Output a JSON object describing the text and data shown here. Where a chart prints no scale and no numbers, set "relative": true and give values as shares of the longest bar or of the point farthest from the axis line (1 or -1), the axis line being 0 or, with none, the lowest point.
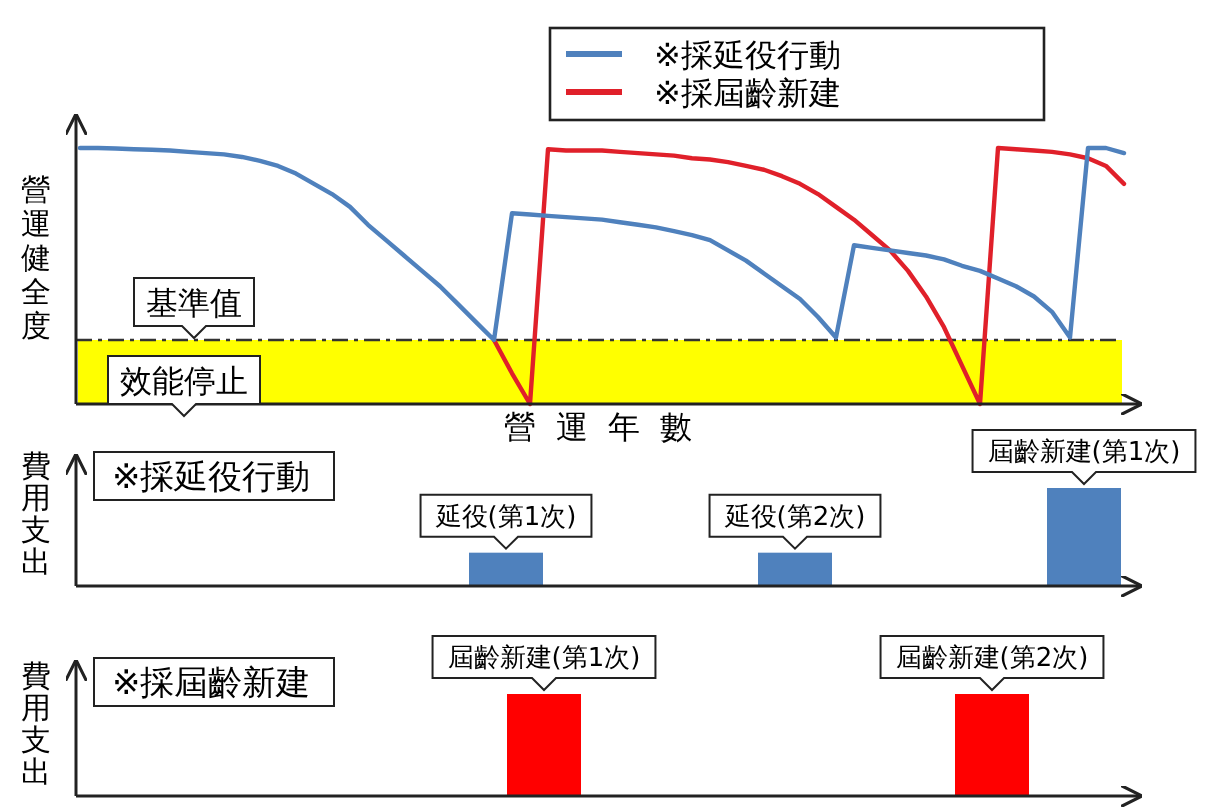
{
  "chart_data": [
    {
      "type": "line",
      "relative": true,
      "xlabel": "營運年數",
      "ylabel": "營運健全度",
      "legend": "top",
      "marker": "none",
      "line_style": "solid",
      "categories": [
        null,
        null,
        null,
        null,
        null,
        null,
        null,
        null,
        null,
        null,
        null,
        null,
        null,
        null,
        null,
        null,
        null,
        null,
        null,
        null,
        null,
        null,
        null,
        null,
        null,
        null,
        null,
        null,
        null,
        null,
        null,
        null,
        null,
        null,
        null,
        null,
        null,
        null,
        null,
        null,
        null,
        null,
        null,
        null,
        null,
        null,
        null,
        null,
        null,
        null,
        null,
        null,
        null,
        null,
        null,
        null,
        null,
        null,
        null
      ],
      "series": [
        {
          "name": "※採屆齡新建",
          "color": "#e0202a",
          "values": [
            null,
            null,
            null,
            null,
            null,
            null,
            null,
            null,
            null,
            null,
            null,
            null,
            null,
            null,
            null,
            null,
            null,
            null,
            null,
            null,
            null,
            null,
            null,
            0.25,
            0.12,
            0.0,
            0.995,
            0.99,
            0.99,
            0.99,
            0.985,
            0.98,
            0.975,
            0.97,
            0.96,
            0.955,
            0.945,
            0.93,
            0.915,
            0.89,
            0.86,
            0.82,
            0.77,
            0.72,
            0.66,
            0.6,
            0.52,
            0.42,
            0.3,
            0.15,
            0.0,
            1.0,
            0.995,
            0.99,
            0.985,
            0.975,
            0.96,
            0.93,
            0.86
          ]
        },
        {
          "name": "※採延役行動",
          "color": "#4f81bd",
          "values": [
            1.0,
            1.0,
            0.998,
            0.995,
            0.993,
            0.99,
            0.985,
            0.98,
            0.975,
            0.965,
            0.95,
            0.93,
            0.9,
            0.86,
            0.82,
            0.77,
            0.7,
            0.64,
            0.58,
            0.52,
            0.46,
            0.39,
            0.32,
            0.25,
            0.745,
            0.74,
            0.735,
            0.73,
            0.725,
            0.72,
            0.71,
            0.7,
            0.69,
            0.675,
            0.66,
            0.64,
            0.6,
            0.56,
            0.51,
            0.46,
            0.41,
            0.34,
            0.26,
            0.62,
            0.61,
            0.6,
            0.59,
            0.58,
            0.565,
            0.54,
            0.52,
            0.49,
            0.46,
            0.42,
            0.36,
            0.26,
            1.0,
            1.0,
            0.98
          ]
        }
      ],
      "ref_lines": [
        {
          "axis": "y",
          "value": 0.25,
          "label": "基準值",
          "color": "#333333",
          "line_style": "dashdot"
        }
      ],
      "bands": [
        {
          "axis": "y",
          "from": 0,
          "to": 0.25,
          "label": "效能停止",
          "color": "#ffff00"
        }
      ]
    },
    {
      "type": "bar",
      "relative": true,
      "title": "※採延役行動",
      "ylabel": "費用支出",
      "categories": [
        null,
        null,
        null
      ],
      "values": [
        0.34,
        0.34,
        1
      ],
      "color": "#4f81bd",
      "annotations": [
        "延役(第1次)",
        "延役(第2次)",
        "屆齡新建(第1次)"
      ]
    },
    {
      "type": "bar",
      "relative": true,
      "title": "※採屆齡新建",
      "ylabel": "費用支出",
      "categories": [
        null,
        null
      ],
      "values": [
        1,
        1
      ],
      "color": "#ff0000",
      "annotations": [
        "屆齡新建(第1次)",
        "屆齡新建(第2次)"
      ]
    }
  ]
}
